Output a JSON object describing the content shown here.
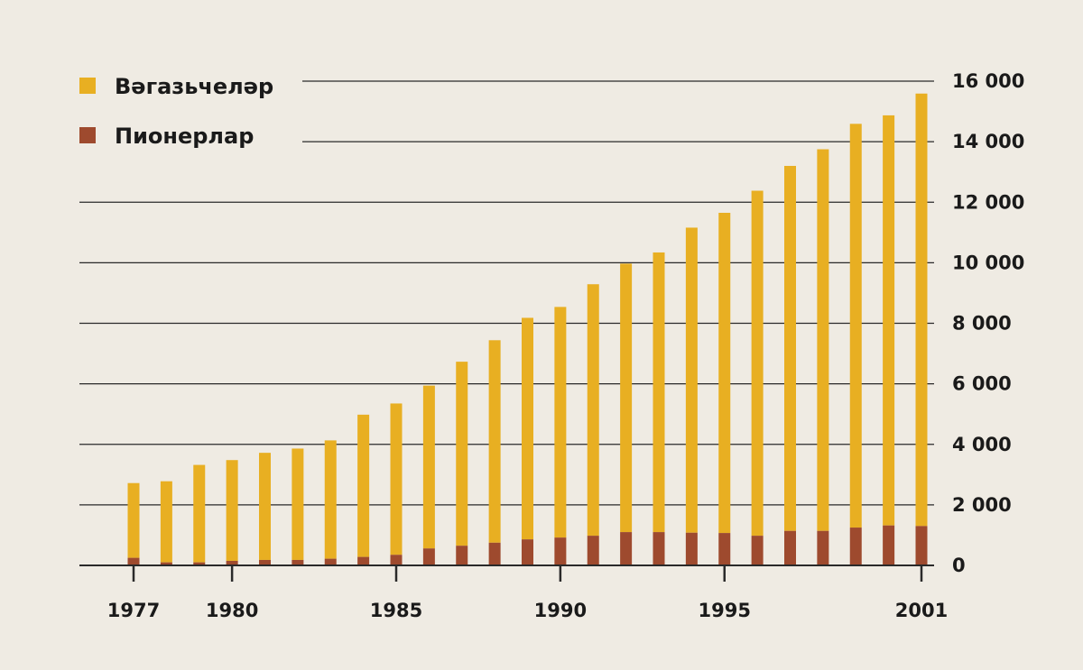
{
  "chart_data": {
    "type": "bar",
    "stacked": true,
    "title": "",
    "xlabel": "",
    "ylabel": "",
    "ylim": [
      0,
      16000
    ],
    "y_ticks": [
      0,
      2000,
      4000,
      6000,
      8000,
      10000,
      12000,
      14000,
      16000
    ],
    "y_tick_labels": [
      "0",
      "2 000",
      "4 000",
      "6 000",
      "8 000",
      "10 000",
      "12 000",
      "14 000",
      "16 000"
    ],
    "y_axis_side": "right",
    "grid": true,
    "legend_position": "top-left",
    "x_tick_labels": [
      "1977",
      "1980",
      "1985",
      "1990",
      "1995",
      "2001"
    ],
    "categories": [
      1977,
      1978,
      1979,
      1980,
      1981,
      1982,
      1983,
      1984,
      1985,
      1986,
      1987,
      1988,
      1989,
      1990,
      1991,
      1992,
      1993,
      1994,
      1995,
      1996,
      1997,
      1998,
      1999,
      2000,
      2001
    ],
    "series": [
      {
        "name": "Пионерлар",
        "color": "#9e4a2e",
        "values": [
          250,
          100,
          100,
          150,
          180,
          180,
          220,
          280,
          350,
          560,
          650,
          750,
          860,
          920,
          980,
          1100,
          1100,
          1080,
          1070,
          980,
          1140,
          1140,
          1250,
          1320,
          1300
        ]
      },
      {
        "name": "Вәгазьчеләр",
        "color": "#e8af22",
        "values": [
          2470,
          2680,
          3220,
          3330,
          3540,
          3680,
          3910,
          4700,
          5000,
          5380,
          6080,
          6690,
          7320,
          7620,
          8310,
          8870,
          9240,
          10080,
          10580,
          11400,
          12060,
          12610,
          13340,
          13550,
          14290
        ]
      }
    ]
  }
}
